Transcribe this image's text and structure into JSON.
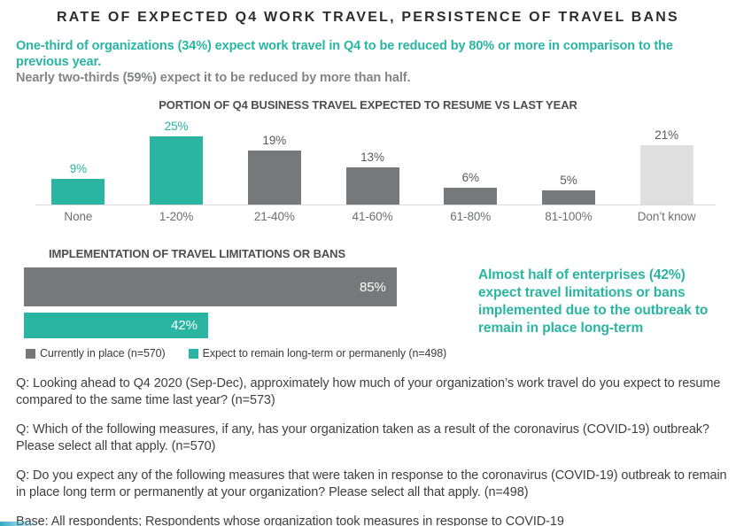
{
  "page": {
    "title": "RATE OF EXPECTED Q4 WORK TRAVEL, PERSISTENCE OF TRAVEL BANS"
  },
  "headline": {
    "teal": "One-third of organizations (34%) expect work travel in Q4 to be reduced by 80% or more in comparison to the previous year.",
    "gray": "Nearly two-thirds (59%) expect it to be reduced by more than half."
  },
  "colors": {
    "teal": "#29b5a2",
    "dark_gray_bar": "#77787b",
    "light_gray_bar": "#dfdfdf",
    "value_label_gray": "#58595b",
    "axis_line": "#dbdbdb"
  },
  "chart_data": [
    {
      "type": "bar",
      "title": "PORTION OF Q4 BUSINESS TRAVEL EXPECTED TO RESUME VS LAST YEAR",
      "categories": [
        "None",
        "1-20%",
        "21-40%",
        "41-60%",
        "61-80%",
        "81-100%",
        "Don’t know"
      ],
      "values": [
        9,
        25,
        19,
        13,
        6,
        5,
        21
      ],
      "value_labels": [
        "9%",
        "25%",
        "19%",
        "13%",
        "6%",
        "5%",
        "21%"
      ],
      "bar_colors": [
        "teal",
        "teal",
        "gray",
        "gray",
        "gray",
        "gray",
        "light"
      ],
      "xlabel": "",
      "ylabel": "",
      "ylim": [
        0,
        30
      ],
      "grid": false,
      "data_labels": "above-bars",
      "legend_position": "none"
    },
    {
      "type": "bar",
      "orientation": "horizontal",
      "title": "IMPLEMENTATION OF TRAVEL LIMITATIONS OR BANS",
      "categories": [
        "Currently in place (n=570)",
        "Expect to remain long-term or permanenly (n=498)"
      ],
      "values": [
        85,
        42
      ],
      "value_labels": [
        "85%",
        "42%"
      ],
      "bar_colors": [
        "gray",
        "teal"
      ],
      "xlim": [
        0,
        100
      ],
      "grid": false,
      "data_labels": "inside-end-white",
      "legend_position": "bottom"
    }
  ],
  "insight": "Almost half of enterprises (42%) expect travel limitations or bans implemented due to the outbreak to remain in place long-term",
  "footnotes": [
    "Q: Looking ahead to Q4 2020 (Sep-Dec), approximately how much of your organization’s work travel do you expect to resume compared to the same time last year? (n=573)",
    "Q: Which of the following measures, if any, has your organization taken as a result of the coronavirus (COVID-19) outbreak? Please select all that apply. (n=570)",
    "Q: Do you expect any of the following measures that were taken in response to the coronavirus (COVID-19) outbreak to remain in place long term or permanently at your organization? Please select all that apply. (n=498)",
    "Base: All respondents; Respondents whose organization took measures in response to COVID-19"
  ]
}
